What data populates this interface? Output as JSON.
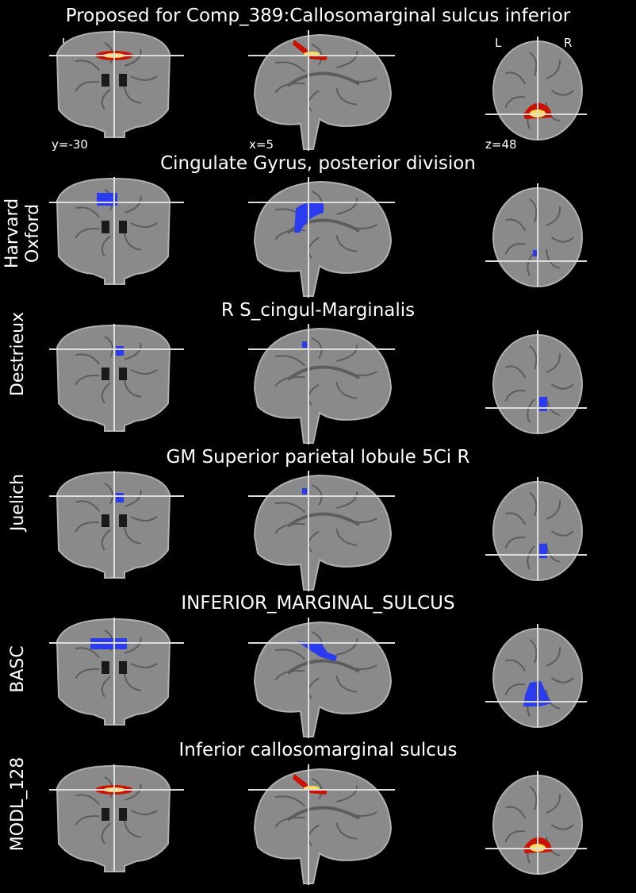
{
  "header": {
    "title": "Proposed for Comp_389:Callosomarginal sulcus inferior",
    "orientation": {
      "left": "L",
      "right": "R"
    },
    "coords": {
      "y": "y=-30",
      "x": "x=5",
      "z": "z=48"
    }
  },
  "rows": [
    {
      "atlas": "",
      "region": ""
    },
    {
      "atlas": "Harvard\nOxford",
      "region": "Cingulate Gyrus, posterior division"
    },
    {
      "atlas": "Destrieux",
      "region": "R S_cingul-Marginalis"
    },
    {
      "atlas": "Juelich",
      "region": "GM Superior parietal lobule 5Ci R"
    },
    {
      "atlas": "BASC",
      "region": "INFERIOR_MARGINAL_SULCUS"
    },
    {
      "atlas": "MODL_128",
      "region": "Inferior callosomarginal sulcus"
    }
  ],
  "colors": {
    "background": "#000000",
    "overlay_atlas": "#2b3cf0",
    "overlay_hot": "#ff9a00",
    "crosshair": "#dddddd"
  }
}
